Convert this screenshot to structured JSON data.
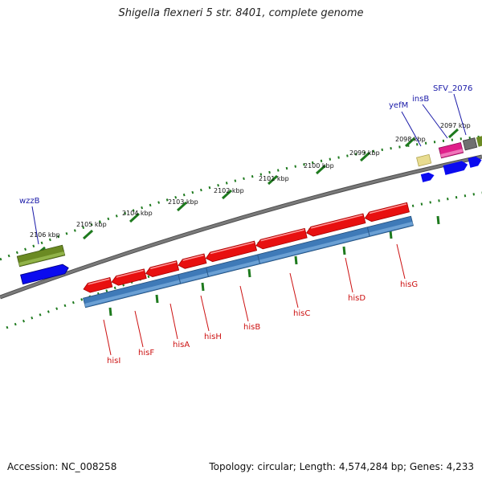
{
  "title": "Shigella flexneri 5 str. 8401, complete genome",
  "footer": {
    "accession": "Accession: NC_008258",
    "topology": "Topology: circular; Length: 4,574,284 bp; Genes: 4,233"
  },
  "colors": {
    "backbone": "#7a7a7a",
    "ticks": "#1e7a1e",
    "gene_red": "#e81010",
    "cds_blue": "#3f7ab8",
    "label_red": "#cc1111",
    "label_blue": "#1a1aa8",
    "wzzB_olive": "#6b8a23",
    "strand_blue": "#0b0bef",
    "yefM_yellow": "#e8dc90",
    "insB_magenta": "#e0208a",
    "sfv_gray": "#707070"
  },
  "ticks": [
    "2106 kbp",
    "2105 kbp",
    "2104 kbp",
    "2103 kbp",
    "2102 kbp",
    "2101 kbp",
    "2100 kbp",
    "2099 kbp",
    "2098 kbp",
    "2097 kbp"
  ],
  "genes_top": [
    "wzzB",
    "yefM",
    "insB",
    "SFV_2076"
  ],
  "genes_bottom": [
    "hisI",
    "hisF",
    "hisA",
    "hisH",
    "hisB",
    "hisC",
    "hisD",
    "hisG"
  ]
}
